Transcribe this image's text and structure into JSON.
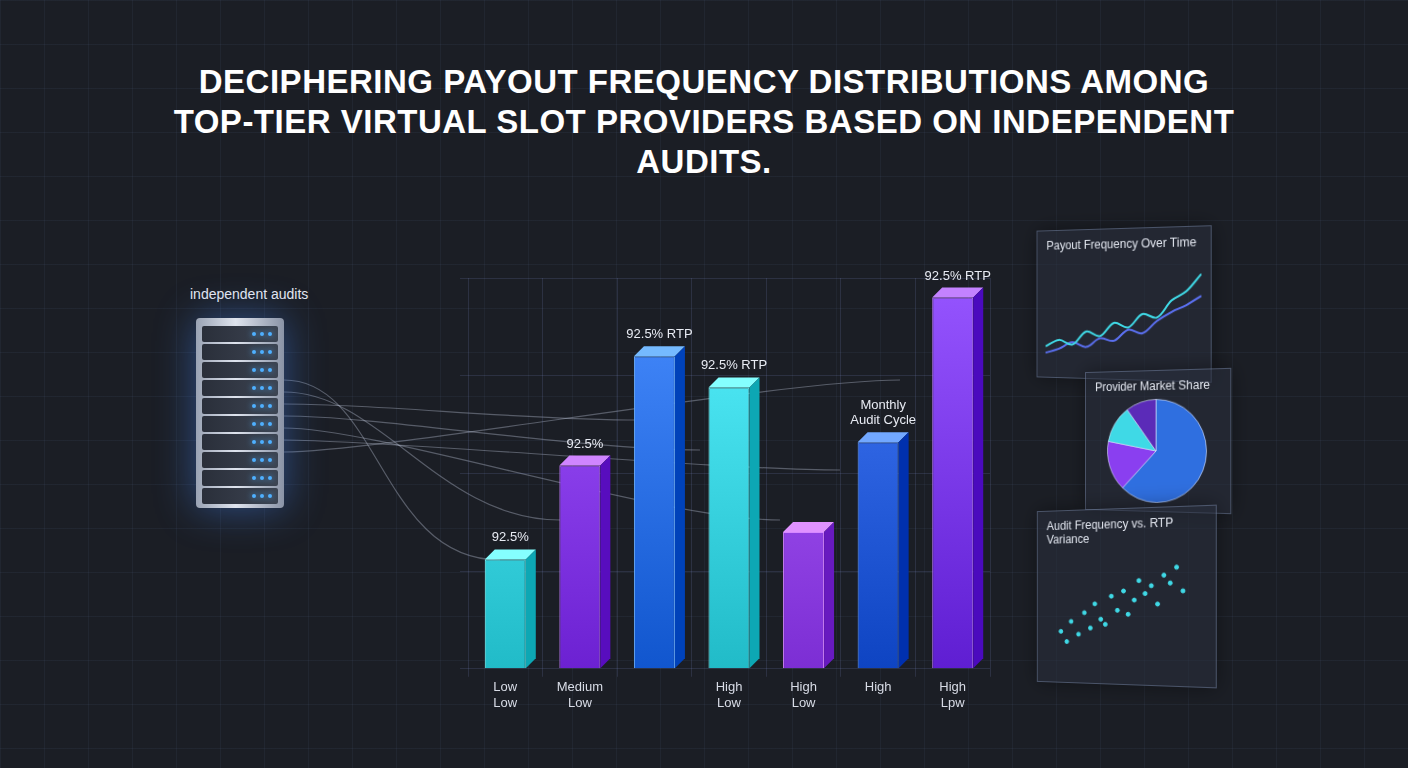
{
  "chart_data": [
    {
      "type": "bar",
      "title": "DECIPHERING PAYOUT FREQUENCY DISTRIBUTIONS AMONG TOP-TIER VIRTUAL SLOT PROVIDERS BASED ON INDEPENDENT AUDITS.",
      "annotations": [
        "independent audits"
      ],
      "categories": [
        "Low Low",
        "Medium Low",
        null,
        "High Low",
        "High Low",
        "High",
        "High Lpw"
      ],
      "values": [
        28,
        52,
        80,
        72,
        35,
        58,
        95
      ],
      "bar_notes": [
        "92.5%",
        "92.5%",
        "92.5% RTP",
        "92.5% RTP",
        null,
        "Monthly Audit Cycle",
        "92.5% RTP"
      ],
      "colors": [
        "#3fd9e6",
        "#8a3ff0",
        "#2f74ec",
        "#3fd9e6",
        "#9a4cf2",
        "#2c62e0",
        "#7d3cf0"
      ],
      "ylim": [
        0,
        100
      ],
      "yticks": [
        0,
        25,
        50,
        75,
        100
      ],
      "grid": true,
      "tick_labels": "x"
    },
    {
      "type": "line",
      "title": "Payout Frequency Over Time",
      "x": [
        0,
        1,
        2,
        3,
        4,
        5,
        6,
        7,
        8,
        9,
        10,
        11
      ],
      "series": [
        {
          "color": "#3fd9e6",
          "values": [
            20,
            26,
            22,
            34,
            30,
            42,
            38,
            50,
            47,
            62,
            70,
            85
          ]
        },
        {
          "color": "#5a6ff0",
          "values": [
            14,
            18,
            24,
            20,
            28,
            26,
            36,
            33,
            44,
            52,
            58,
            66
          ]
        }
      ],
      "xlim": [
        0,
        11
      ],
      "ylim": [
        0,
        100
      ],
      "grid": false,
      "tick_labels": false
    },
    {
      "type": "pie",
      "title": "Provider Market Share",
      "categories": [
        null,
        null,
        null,
        null
      ],
      "values": [
        62,
        16,
        12,
        10
      ],
      "colors": [
        "#2f6fe0",
        "#8a3ff0",
        "#3fd9e6",
        "#5b2bb8"
      ]
    },
    {
      "type": "scatter",
      "title": "Audit Frequency vs. RTP Variance",
      "x": [
        8,
        12,
        15,
        20,
        24,
        28,
        31,
        35,
        38,
        42,
        46,
        50,
        53,
        57,
        60,
        64,
        68,
        72,
        76,
        80,
        84,
        88
      ],
      "values": [
        30,
        22,
        38,
        28,
        45,
        33,
        52,
        40,
        36,
        58,
        47,
        62,
        44,
        55,
        70,
        60,
        66,
        52,
        74,
        68,
        80,
        62
      ],
      "color": "#3fd9e6",
      "xlim": [
        0,
        100
      ],
      "ylim": [
        0,
        100
      ],
      "grid": false,
      "tick_labels": false
    }
  ]
}
